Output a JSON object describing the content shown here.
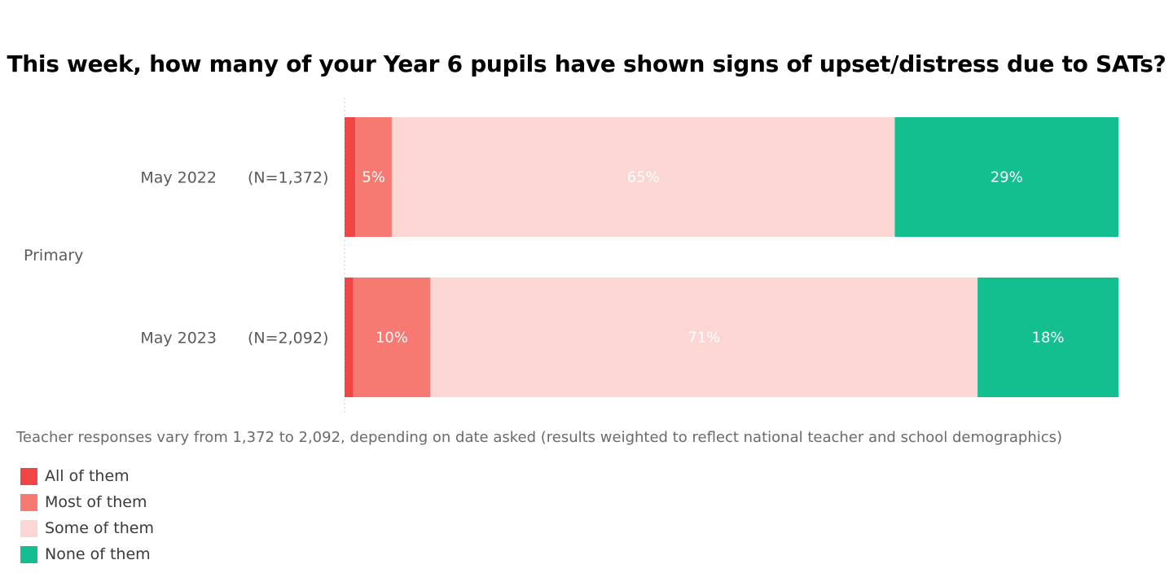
{
  "chart_data": {
    "type": "bar",
    "orientation": "horizontal",
    "stacked": true,
    "normalized": true,
    "title": "This week, how many of your Year 6 pupils have shown signs of upset/distress due to SATs?",
    "group_label": "Primary",
    "categories": [
      {
        "label": "May 2022",
        "n": "(N=1,372)"
      },
      {
        "label": "May 2023",
        "n": "(N=2,092)"
      }
    ],
    "series": [
      {
        "name": "All of them",
        "color": "#f24444",
        "values": [
          1.4,
          1.1
        ],
        "labels": [
          "",
          ""
        ],
        "label_color": "#ffffff"
      },
      {
        "name": "Most of them",
        "color": "#f77a72",
        "values": [
          4.7,
          10.0
        ],
        "labels": [
          "5%",
          "10%"
        ],
        "label_color": "#ffffff"
      },
      {
        "name": "Some of them",
        "color": "#fcd6d3",
        "values": [
          65,
          70.7
        ],
        "labels": [
          "65%",
          "71%"
        ],
        "label_color": "#ffffff"
      },
      {
        "name": "None of them",
        "color": "#13be8f",
        "values": [
          28.9,
          18.2
        ],
        "labels": [
          "29%",
          "18%"
        ],
        "label_color": "#ffffff"
      }
    ],
    "xlim": [
      0,
      100
    ],
    "legend_placement": "bottom-left",
    "footnote": "Teacher responses vary from 1,372 to 2,092, depending on date asked (results weighted to reflect national teacher and school demographics)"
  }
}
